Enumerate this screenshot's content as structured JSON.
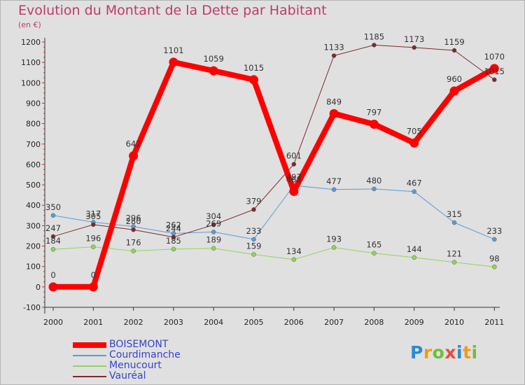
{
  "title": "Evolution du Montant de la Dette par Habitant",
  "unit": "(en €)",
  "logo": {
    "letters": [
      "P",
      "r",
      "o",
      "x",
      "i",
      "t",
      "i"
    ],
    "colors": [
      "#2a8ad6",
      "#f39c12",
      "#6cbf3a",
      "#e84b3c",
      "#2a8ad6",
      "#f39c12",
      "#6cbf3a"
    ]
  },
  "chart_data": {
    "type": "line",
    "x": [
      "2000",
      "2001",
      "2002",
      "2003",
      "2004",
      "2005",
      "2006",
      "2007",
      "2008",
      "2009",
      "2010",
      "2011"
    ],
    "ylim": [
      -100,
      1200
    ],
    "yticks": [
      -100,
      0,
      100,
      200,
      300,
      400,
      500,
      600,
      700,
      800,
      900,
      1000,
      1100,
      1200
    ],
    "grid": false,
    "legend_position": "bottom-left",
    "series": [
      {
        "name": "Menucourt",
        "color": "#8fd65a",
        "width": 1,
        "marker": 3,
        "values": [
          184,
          196,
          176,
          185,
          189,
          159,
          134,
          193,
          165,
          144,
          121,
          98
        ]
      },
      {
        "name": "Courdimanche",
        "color": "#5b9bd5",
        "width": 1,
        "marker": 3,
        "values": [
          350,
          317,
          296,
          262,
          269,
          233,
          497,
          477,
          480,
          467,
          315,
          233
        ]
      },
      {
        "name": "Vauréal",
        "color": "#7b2b2b",
        "width": 1,
        "marker": 3,
        "values": [
          247,
          305,
          280,
          244,
          304,
          379,
          601,
          1133,
          1185,
          1173,
          1159,
          1015
        ]
      },
      {
        "name": "BOISEMONT",
        "color": "#ff0000",
        "width": 8,
        "marker": 6.5,
        "values": [
          0,
          0,
          642,
          1101,
          1059,
          1015,
          468,
          849,
          797,
          705,
          960,
          1070
        ]
      }
    ],
    "labels": {
      "Menucourt": [
        "184",
        "196",
        "176",
        "185",
        "189",
        "159",
        "134",
        "193",
        "165",
        "144",
        "121",
        "98"
      ],
      "Courdimanche": [
        "350",
        "317",
        "296",
        "262",
        "269",
        "233",
        "497",
        "477",
        "480",
        "467",
        "315",
        "233"
      ],
      "Vauréal": [
        "247",
        "305",
        "280",
        "244",
        "304",
        "379",
        "601",
        "1133",
        "1185",
        "1173",
        "1159",
        "1015"
      ],
      "BOISEMONT": [
        "0",
        "0",
        "642",
        "1101",
        "1059",
        "1015",
        "468",
        "849",
        "797",
        "705",
        "960",
        "1070"
      ]
    },
    "legend": [
      {
        "name": "BOISEMONT",
        "color": "#ff0000",
        "text_color": "#3344cc"
      },
      {
        "name": "Courdimanche",
        "color": "#5b9bd5",
        "text_color": "#3344cc"
      },
      {
        "name": "Menucourt",
        "color": "#8fd65a",
        "text_color": "#3344cc"
      },
      {
        "name": "Vauréal",
        "color": "#7b2b2b",
        "text_color": "#3344cc"
      }
    ]
  }
}
